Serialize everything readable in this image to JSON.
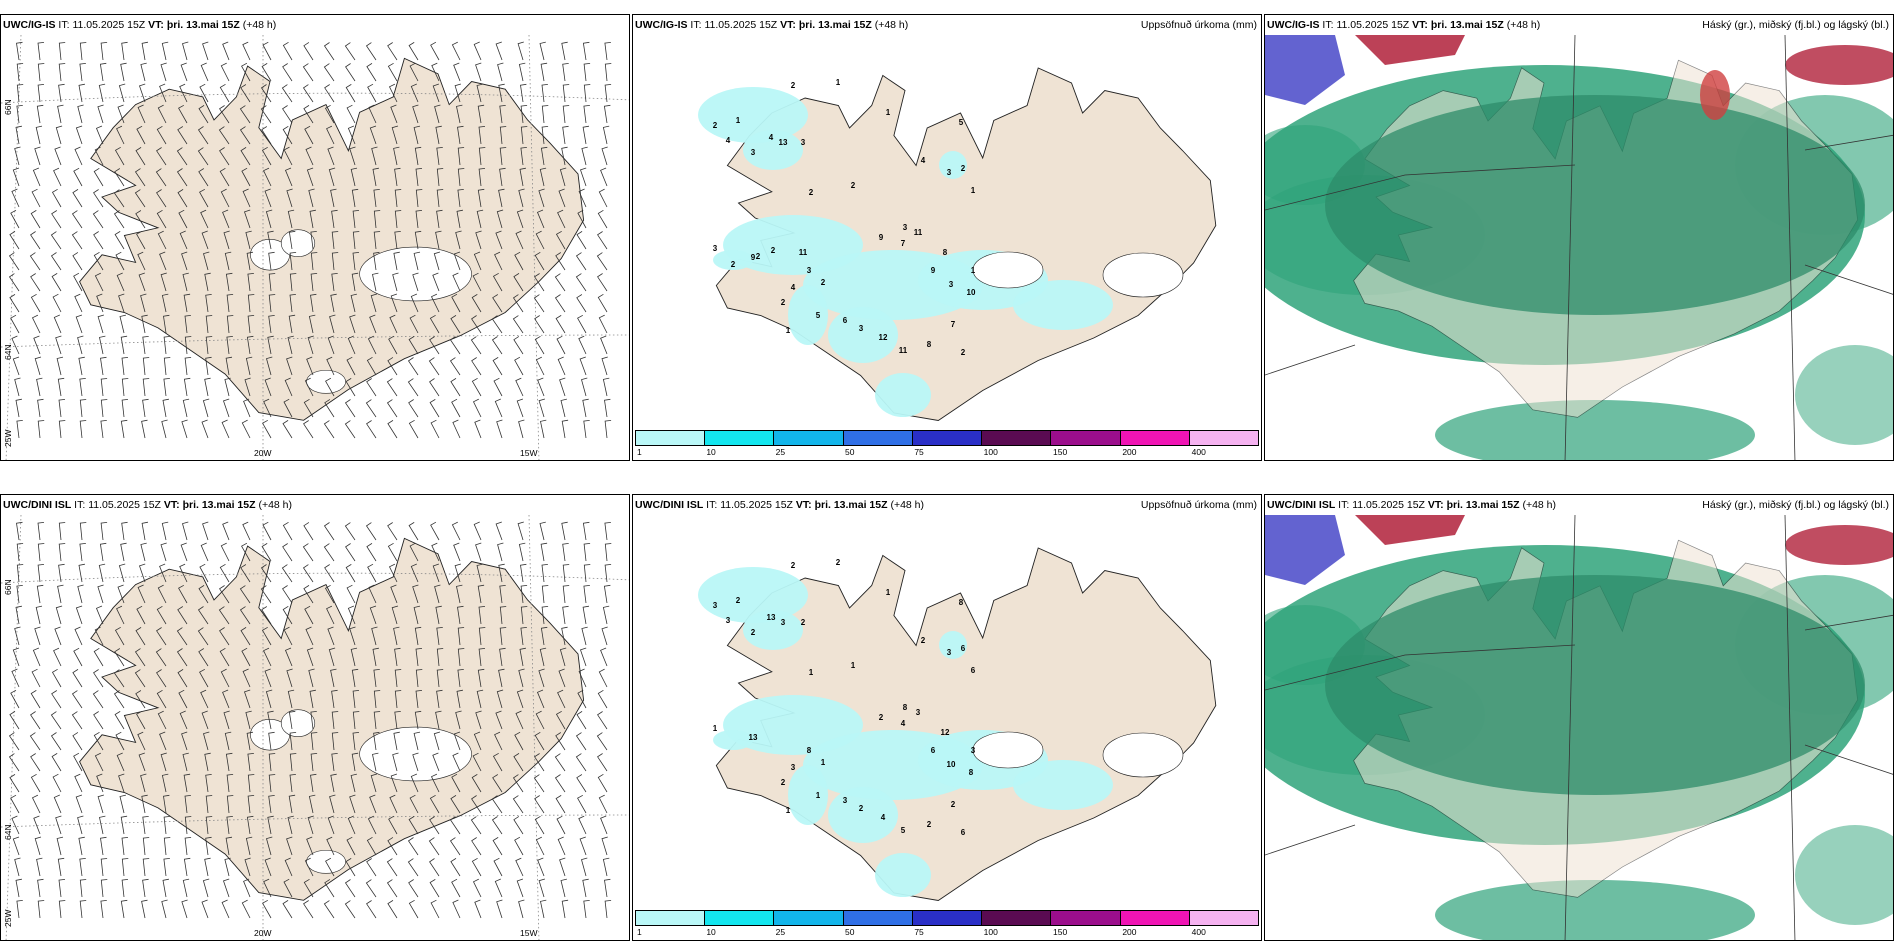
{
  "rows": [
    {
      "model": "UWC/IG-IS",
      "it_label": "IT:",
      "it_value": "11.05.2025 15Z",
      "vt_label": "VT:",
      "vt_value": "þri. 13.mai 15Z",
      "lead": "(+48 h)"
    },
    {
      "model": "UWC/DINI ISL",
      "it_label": "IT:",
      "it_value": "11.05.2025 15Z",
      "vt_label": "VT:",
      "vt_value": "þri. 13.mai 15Z",
      "lead": "(+48 h)"
    }
  ],
  "precip_title": "Uppsöfnuð úrkoma (mm)",
  "cloud_title": "Háský (gr.), miðský (fj.bl.) og lágský (bl.)",
  "lat_labels": [
    "66N",
    "64N"
  ],
  "lon_labels": [
    "25W",
    "20W",
    "15W"
  ],
  "colorbar": {
    "ticks": [
      "1",
      "10",
      "25",
      "50",
      "75",
      "100",
      "150",
      "200",
      "400"
    ],
    "colors": [
      "#b9f7f7",
      "#13e6ef",
      "#12b5ea",
      "#2f6fe6",
      "#2a2fc7",
      "#5a0b52",
      "#9b0e8c",
      "#f014b4",
      "#f5b2f0"
    ]
  },
  "precip_labels_top": [
    "2",
    "1",
    "2",
    "4",
    "1",
    "3",
    "4",
    "13",
    "3",
    "2",
    "1",
    "4",
    "3",
    "2",
    "5",
    "1",
    "2",
    "3",
    "9",
    "11",
    "7",
    "8",
    "9",
    "1",
    "3",
    "10",
    "7",
    "2",
    "8",
    "11",
    "12",
    "3",
    "6",
    "2",
    "5",
    "3",
    "4",
    "2",
    "1",
    "9",
    "3",
    "2",
    "2",
    "2",
    "11"
  ],
  "precip_labels_bottom": [
    "2",
    "2",
    "3",
    "3",
    "2",
    "2",
    "13",
    "3",
    "2",
    "1",
    "1",
    "2",
    "3",
    "6",
    "8",
    "6",
    "1",
    "8",
    "2",
    "3",
    "4",
    "12",
    "6",
    "3",
    "10",
    "8",
    "2",
    "6",
    "2",
    "5",
    "4",
    "2",
    "3",
    "1",
    "1",
    "8",
    "3",
    "2",
    "1",
    "13",
    "1"
  ],
  "colors": {
    "land": "#efe3d4",
    "coast": "#222222",
    "cloud_green": "#2fa37a",
    "cloud_blue": "#4848c8",
    "cloud_red": "#b0203a"
  }
}
